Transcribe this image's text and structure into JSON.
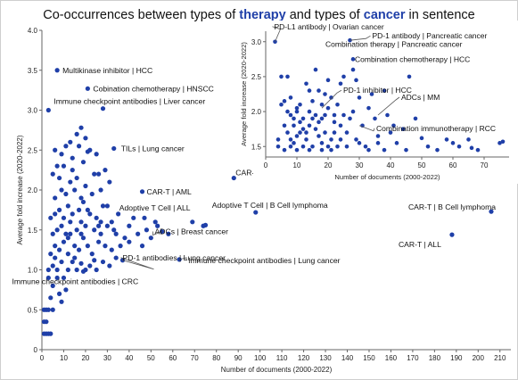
{
  "title": {
    "part1": "Co-occurrences between types of ",
    "therapy": "therapy",
    "part2": " and types of ",
    "cancer": "cancer",
    "part3": " in sentence"
  },
  "chart_data": [
    {
      "type": "scatter",
      "xlabel": "Number of documents (2000-2022)",
      "ylabel": "Average fold increase (2020-2022)",
      "xlim": [
        0,
        215
      ],
      "ylim": [
        0,
        4.0
      ],
      "xticks": [
        0,
        10,
        20,
        30,
        40,
        50,
        60,
        70,
        80,
        90,
        100,
        110,
        120,
        130,
        140,
        150,
        160,
        170,
        180,
        190,
        200,
        210
      ],
      "yticks": [
        0,
        0.5,
        1.0,
        1.5,
        2.0,
        2.5,
        3.0,
        3.5,
        4.0
      ],
      "ytick_labels": [
        "0",
        "0.5",
        "1.0",
        "1.5",
        "2.0",
        "2.5",
        "3.0",
        "3.5",
        "4.0"
      ],
      "point_color": "#1f3fa8",
      "points": [
        [
          7,
          3.5
        ],
        [
          21,
          3.27
        ],
        [
          3,
          3.0
        ],
        [
          28,
          3.02
        ],
        [
          33,
          2.52
        ],
        [
          88,
          2.15
        ],
        [
          46,
          1.98
        ],
        [
          69,
          1.6
        ],
        [
          98,
          1.72
        ],
        [
          74,
          1.55
        ],
        [
          75,
          1.56
        ],
        [
          55,
          1.48
        ],
        [
          63,
          1.13
        ],
        [
          37,
          1.12
        ],
        [
          19,
          0.98
        ],
        [
          206,
          1.73
        ],
        [
          188,
          1.44
        ],
        [
          1,
          0.2
        ],
        [
          2,
          0.2
        ],
        [
          3,
          0.2
        ],
        [
          4,
          0.2
        ],
        [
          1,
          0.35
        ],
        [
          2,
          0.35
        ],
        [
          1,
          0.5
        ],
        [
          2,
          0.5
        ],
        [
          3,
          0.5
        ],
        [
          5,
          0.5
        ],
        [
          4,
          0.65
        ],
        [
          5,
          0.8
        ],
        [
          8,
          0.7
        ],
        [
          10,
          0.9
        ],
        [
          3,
          1.0
        ],
        [
          5,
          1.05
        ],
        [
          7,
          1.0
        ],
        [
          9,
          1.1
        ],
        [
          12,
          1.0
        ],
        [
          14,
          1.1
        ],
        [
          16,
          1.0
        ],
        [
          18,
          1.08
        ],
        [
          20,
          1.0
        ],
        [
          22,
          1.05
        ],
        [
          25,
          1.0
        ],
        [
          28,
          1.1
        ],
        [
          31,
          1.05
        ],
        [
          34,
          1.15
        ],
        [
          4,
          1.2
        ],
        [
          6,
          1.3
        ],
        [
          8,
          1.25
        ],
        [
          10,
          1.35
        ],
        [
          12,
          1.2
        ],
        [
          15,
          1.3
        ],
        [
          17,
          1.25
        ],
        [
          19,
          1.4
        ],
        [
          21,
          1.3
        ],
        [
          23,
          1.2
        ],
        [
          26,
          1.35
        ],
        [
          29,
          1.3
        ],
        [
          32,
          1.25
        ],
        [
          36,
          1.3
        ],
        [
          40,
          1.35
        ],
        [
          5,
          1.45
        ],
        [
          7,
          1.5
        ],
        [
          9,
          1.55
        ],
        [
          11,
          1.45
        ],
        [
          13,
          1.6
        ],
        [
          16,
          1.5
        ],
        [
          18,
          1.45
        ],
        [
          20,
          1.55
        ],
        [
          24,
          1.5
        ],
        [
          27,
          1.45
        ],
        [
          30,
          1.55
        ],
        [
          33,
          1.5
        ],
        [
          38,
          1.4
        ],
        [
          44,
          1.45
        ],
        [
          50,
          1.4
        ],
        [
          6,
          1.7
        ],
        [
          8,
          1.75
        ],
        [
          10,
          1.65
        ],
        [
          12,
          1.8
        ],
        [
          14,
          1.7
        ],
        [
          17,
          1.75
        ],
        [
          19,
          1.85
        ],
        [
          22,
          1.7
        ],
        [
          25,
          1.65
        ],
        [
          28,
          1.8
        ],
        [
          32,
          1.6
        ],
        [
          35,
          1.7
        ],
        [
          42,
          1.65
        ],
        [
          48,
          1.5
        ],
        [
          58,
          1.45
        ],
        [
          6,
          1.9
        ],
        [
          9,
          2.0
        ],
        [
          11,
          1.95
        ],
        [
          13,
          2.1
        ],
        [
          15,
          2.0
        ],
        [
          18,
          1.9
        ],
        [
          20,
          2.05
        ],
        [
          23,
          1.95
        ],
        [
          27,
          2.0
        ],
        [
          31,
          2.1
        ],
        [
          5,
          2.2
        ],
        [
          8,
          2.15
        ],
        [
          10,
          2.3
        ],
        [
          14,
          2.25
        ],
        [
          16,
          2.15
        ],
        [
          19,
          2.35
        ],
        [
          24,
          2.2
        ],
        [
          29,
          2.25
        ],
        [
          6,
          2.5
        ],
        [
          9,
          2.45
        ],
        [
          13,
          2.6
        ],
        [
          17,
          2.55
        ],
        [
          22,
          2.5
        ],
        [
          25,
          2.45
        ],
        [
          16,
          2.7
        ],
        [
          20,
          2.65
        ],
        [
          14,
          2.4
        ],
        [
          18,
          2.78
        ],
        [
          21,
          2.48
        ],
        [
          26,
          2.2
        ],
        [
          12,
          1.4
        ],
        [
          15,
          1.15
        ],
        [
          24,
          1.12
        ],
        [
          7,
          0.9
        ],
        [
          9,
          0.6
        ],
        [
          11,
          0.75
        ],
        [
          3,
          0.9
        ],
        [
          6,
          1.15
        ],
        [
          18,
          1.6
        ],
        [
          26,
          1.55
        ],
        [
          30,
          1.8
        ],
        [
          34,
          1.45
        ],
        [
          40,
          1.55
        ],
        [
          47,
          1.65
        ],
        [
          53,
          1.55
        ],
        [
          46,
          1.3
        ],
        [
          52,
          1.6
        ],
        [
          4,
          1.65
        ],
        [
          7,
          2.3
        ],
        [
          11,
          2.55
        ],
        [
          13,
          1.45
        ],
        [
          21,
          1.75
        ],
        [
          27,
          1.6
        ]
      ],
      "annotations": [
        {
          "label": "Multikinase inhibitor | HCC",
          "x": 7,
          "y": 3.5
        },
        {
          "label": "Cobination chemotherapy | HNSCC",
          "x": 21,
          "y": 3.27
        },
        {
          "label": "Immune checkpoint antibodies | Liver cancer",
          "x": 3,
          "y": 3.0
        },
        {
          "label": "TILs | Lung cancer",
          "x": 33,
          "y": 2.52
        },
        {
          "label": "CAR-T | MM",
          "x": 88,
          "y": 2.15
        },
        {
          "label": "CAR-T | AML",
          "x": 46,
          "y": 1.98
        },
        {
          "label": "Adoptive T Cell | B Cell lymphoma",
          "x": 98,
          "y": 1.72
        },
        {
          "label": "Adoptive T Cell | ALL",
          "x": 69,
          "y": 1.6
        },
        {
          "label": "ADCs | Breast cancer",
          "x": 55,
          "y": 1.48
        },
        {
          "label": "Immune checkpoint antibodies | Lung cancer",
          "x": 63,
          "y": 1.13
        },
        {
          "label": "PD-1 antibodies | Lung cancer",
          "x": 37,
          "y": 1.12
        },
        {
          "label": "Immune checkpoint antibodies | CRC",
          "x": 19,
          "y": 0.98
        },
        {
          "label": "CAR-T | B Cell lymphoma",
          "x": 206,
          "y": 1.73
        },
        {
          "label": "CAR-T | ALL",
          "x": 188,
          "y": 1.44
        }
      ]
    },
    {
      "type": "scatter",
      "xlabel": "Number of documents (2000-2022)",
      "ylabel": "Average fold increase (2020-2022)",
      "xlim": [
        0,
        78
      ],
      "ylim": [
        1.35,
        3.15
      ],
      "xticks": [
        0,
        10,
        20,
        30,
        40,
        50,
        60,
        70
      ],
      "yticks": [
        1.5,
        2.0,
        2.5,
        3.0
      ],
      "ytick_labels": [
        "1.5",
        "2.0",
        "2.5",
        "3.0"
      ],
      "point_color": "#1f3fa8",
      "points": [
        [
          3,
          3.0
        ],
        [
          4,
          1.5
        ],
        [
          5,
          2.5
        ],
        [
          6,
          1.8
        ],
        [
          7,
          2.5
        ],
        [
          8,
          1.6
        ],
        [
          9,
          1.9
        ],
        [
          10,
          2.0
        ],
        [
          11,
          1.7
        ],
        [
          12,
          1.5
        ],
        [
          13,
          2.4
        ],
        [
          14,
          1.8
        ],
        [
          15,
          1.5
        ],
        [
          16,
          2.6
        ],
        [
          17,
          2.3
        ],
        [
          18,
          1.9
        ],
        [
          19,
          1.7
        ],
        [
          20,
          1.5
        ],
        [
          21,
          2.2
        ],
        [
          22,
          1.85
        ],
        [
          23,
          2.1
        ],
        [
          24,
          1.6
        ],
        [
          25,
          2.5
        ],
        [
          4,
          1.6
        ],
        [
          6,
          1.45
        ],
        [
          7,
          2.0
        ],
        [
          8,
          1.95
        ],
        [
          9,
          1.55
        ],
        [
          10,
          1.65
        ],
        [
          11,
          1.85
        ],
        [
          12,
          1.75
        ],
        [
          13,
          1.6
        ],
        [
          14,
          2.0
        ],
        [
          15,
          1.9
        ],
        [
          16,
          1.75
        ],
        [
          17,
          1.65
        ],
        [
          18,
          1.55
        ],
        [
          19,
          1.95
        ],
        [
          20,
          2.05
        ],
        [
          21,
          1.6
        ],
        [
          22,
          1.7
        ],
        [
          23,
          1.5
        ],
        [
          24,
          1.8
        ],
        [
          25,
          1.95
        ],
        [
          5,
          2.1
        ],
        [
          6,
          2.15
        ],
        [
          7,
          1.7
        ],
        [
          8,
          2.2
        ],
        [
          9,
          1.8
        ],
        [
          10,
          2.05
        ],
        [
          11,
          2.1
        ],
        [
          12,
          1.9
        ],
        [
          13,
          1.7
        ],
        [
          14,
          2.3
        ],
        [
          15,
          2.15
        ],
        [
          16,
          1.95
        ],
        [
          17,
          1.85
        ],
        [
          18,
          2.1
        ],
        [
          19,
          2.25
        ],
        [
          20,
          2.45
        ],
        [
          22,
          1.95
        ],
        [
          26,
          1.7
        ],
        [
          27,
          1.9
        ],
        [
          28,
          2.0
        ],
        [
          29,
          1.6
        ],
        [
          30,
          2.2
        ],
        [
          31,
          1.8
        ],
        [
          32,
          1.5
        ],
        [
          33,
          2.05
        ],
        [
          34,
          2.25
        ],
        [
          35,
          1.9
        ],
        [
          36,
          1.65
        ],
        [
          38,
          2.3
        ],
        [
          40,
          1.7
        ],
        [
          42,
          1.55
        ],
        [
          45,
          1.45
        ],
        [
          48,
          1.9
        ],
        [
          52,
          1.5
        ],
        [
          58,
          1.6
        ],
        [
          62,
          1.5
        ],
        [
          66,
          1.48
        ],
        [
          27,
          3.02
        ],
        [
          28,
          2.75
        ],
        [
          29,
          2.45
        ],
        [
          24,
          2.4
        ],
        [
          28,
          2.6
        ],
        [
          8,
          1.5
        ],
        [
          10,
          1.45
        ],
        [
          14,
          1.45
        ],
        [
          18,
          1.45
        ],
        [
          21,
          1.45
        ],
        [
          26,
          1.5
        ],
        [
          38,
          1.45
        ],
        [
          44,
          1.75
        ],
        [
          30,
          1.55
        ],
        [
          33,
          1.45
        ],
        [
          36,
          1.55
        ],
        [
          39,
          1.95
        ],
        [
          41,
          1.8
        ],
        [
          50,
          1.62
        ],
        [
          55,
          1.45
        ],
        [
          60,
          1.55
        ],
        [
          65,
          1.6
        ],
        [
          68,
          1.45
        ],
        [
          75,
          1.55
        ],
        [
          76,
          1.57
        ],
        [
          46,
          2.5
        ]
      ],
      "annotations": [
        {
          "label": "PD-L1 antibody | Ovarian cancer",
          "x": 3,
          "y": 3.0
        },
        {
          "label": "PD-1 antibody | Pancreatic cancer",
          "x": 27,
          "y": 3.02
        },
        {
          "label": "Combination therapy | Pancreatic cancer",
          "x": 24,
          "y": 2.85
        },
        {
          "label": "Combination chemotherapy | HCC",
          "x": 28,
          "y": 2.75
        },
        {
          "label": "PD-1 inhibitor | HCC",
          "x": 18,
          "y": 2.05
        },
        {
          "label": "ADCs | MM",
          "x": 36,
          "y": 1.95
        },
        {
          "label": "Combination immunotherapy | RCC",
          "x": 30,
          "y": 1.8
        }
      ]
    }
  ]
}
